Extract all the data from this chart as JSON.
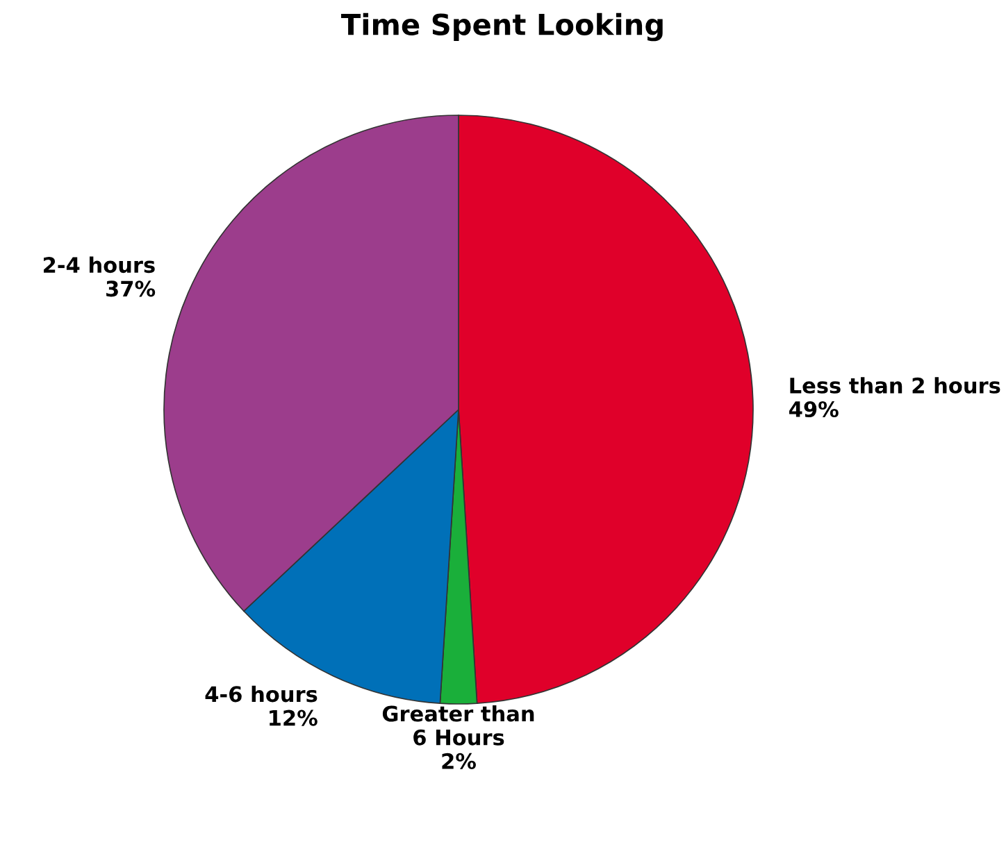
{
  "chart_data": {
    "type": "pie",
    "title": "Time Spent Looking",
    "categories": [
      "Less than 2 hours",
      "Greater than\n6 Hours",
      "4-6 hours",
      "2-4 hours"
    ],
    "values": [
      49,
      2,
      12,
      37
    ],
    "value_labels": [
      "49%",
      "2%",
      "12%",
      "37%"
    ],
    "colors": [
      "#e0002a",
      "#1aaf3a",
      "#0070b8",
      "#9c3d8c"
    ]
  }
}
